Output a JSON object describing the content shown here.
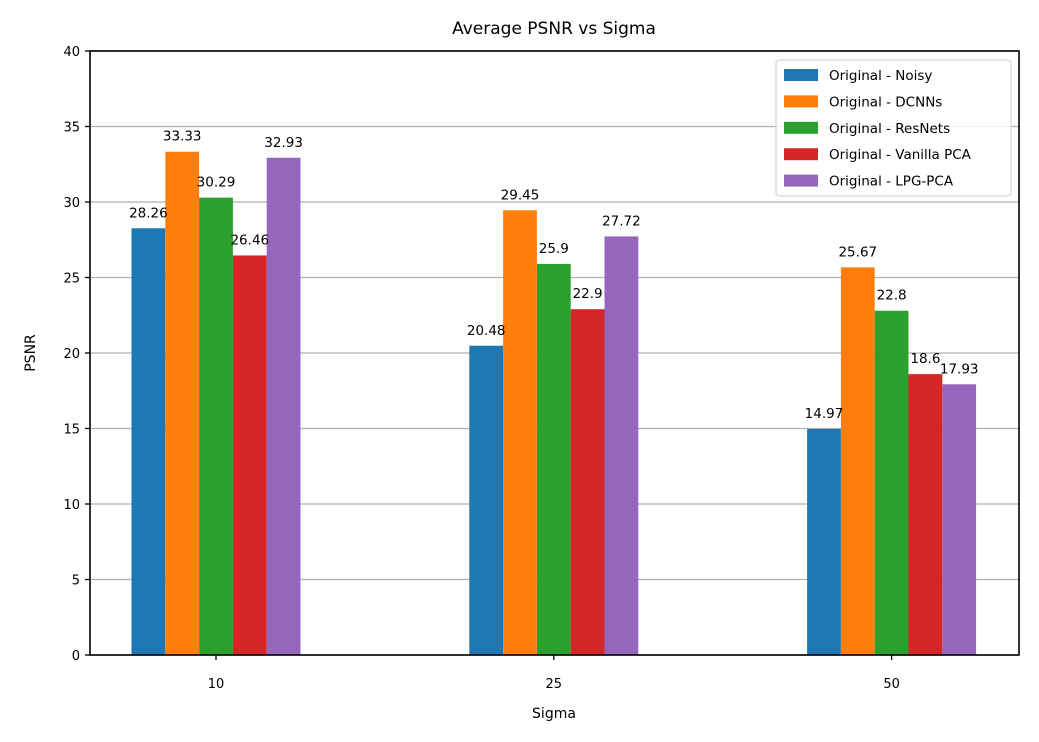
{
  "chart_data": {
    "type": "bar",
    "title": "Average PSNR vs Sigma",
    "xlabel": "Sigma",
    "ylabel": "PSNR",
    "categories": [
      "10",
      "25",
      "50"
    ],
    "ylim": [
      0,
      40
    ],
    "yticks": [
      0,
      5,
      10,
      15,
      20,
      25,
      30,
      35,
      40
    ],
    "grid": "y",
    "legend_position": "top-right",
    "series": [
      {
        "name": "Original - Noisy",
        "color": "#1f77b4",
        "values": [
          28.26,
          20.48,
          14.97
        ],
        "labels": [
          "28.26",
          "20.48",
          "14.97"
        ]
      },
      {
        "name": "Original - DCNNs",
        "color": "#ff7f0e",
        "values": [
          33.33,
          29.45,
          25.67
        ],
        "labels": [
          "33.33",
          "29.45",
          "25.67"
        ]
      },
      {
        "name": "Original - ResNets",
        "color": "#2ca02c",
        "values": [
          30.29,
          25.9,
          22.8
        ],
        "labels": [
          "30.29",
          "25.9",
          "22.8"
        ]
      },
      {
        "name": "Original - Vanilla PCA",
        "color": "#d62728",
        "values": [
          26.46,
          22.9,
          18.6
        ],
        "labels": [
          "26.46",
          "22.9",
          "18.6"
        ]
      },
      {
        "name": "Original - LPG-PCA",
        "color": "#9467bd",
        "values": [
          32.93,
          27.72,
          17.93
        ],
        "labels": [
          "32.93",
          "27.72",
          "17.93"
        ]
      }
    ]
  }
}
